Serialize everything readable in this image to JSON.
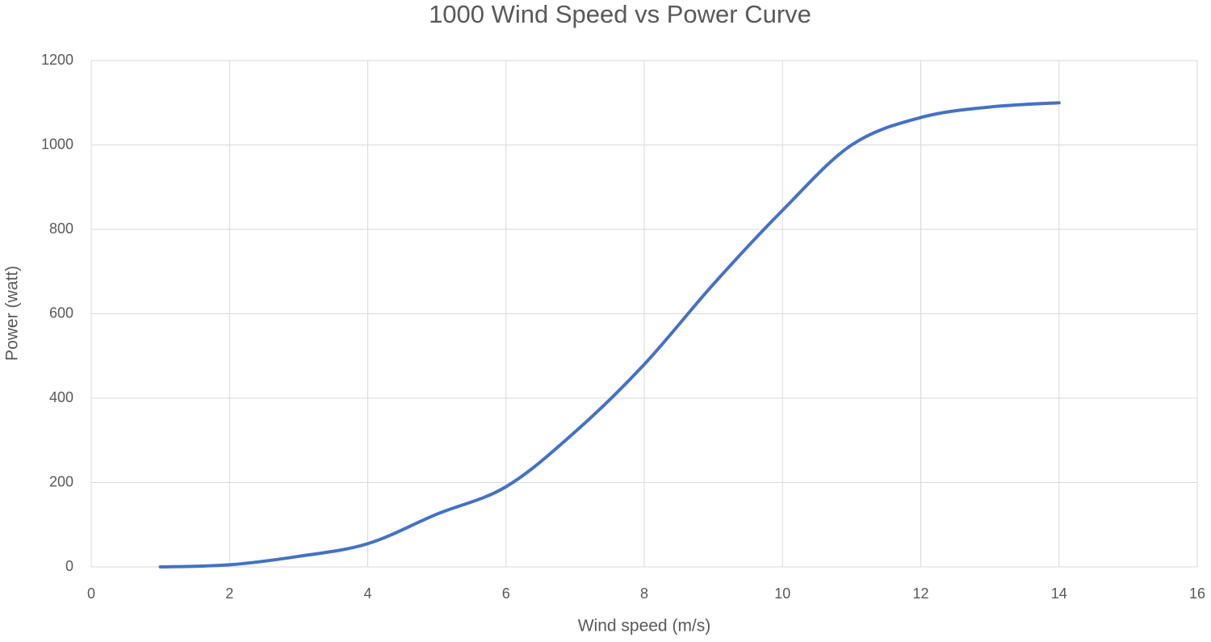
{
  "chart_data": {
    "type": "line",
    "title": "1000 Wind Speed vs Power Curve",
    "x_label": "Wind speed (m/s)",
    "y_label": "Power (watt)",
    "x": [
      1,
      2,
      3,
      4,
      5,
      6,
      7,
      8,
      9,
      10,
      11,
      12,
      13,
      14
    ],
    "series": [
      {
        "color": "#4472c4",
        "values": [
          0,
          5,
          25,
          55,
          125,
          190,
          320,
          480,
          670,
          845,
          1000,
          1065,
          1090,
          1100
        ]
      }
    ],
    "xlim": [
      0,
      16
    ],
    "xticks": [
      0,
      2,
      4,
      6,
      8,
      10,
      12,
      14,
      16
    ],
    "ylim": [
      0,
      1200
    ],
    "yticks": [
      0,
      200,
      400,
      600,
      800,
      1000,
      1200
    ],
    "grid": true
  }
}
